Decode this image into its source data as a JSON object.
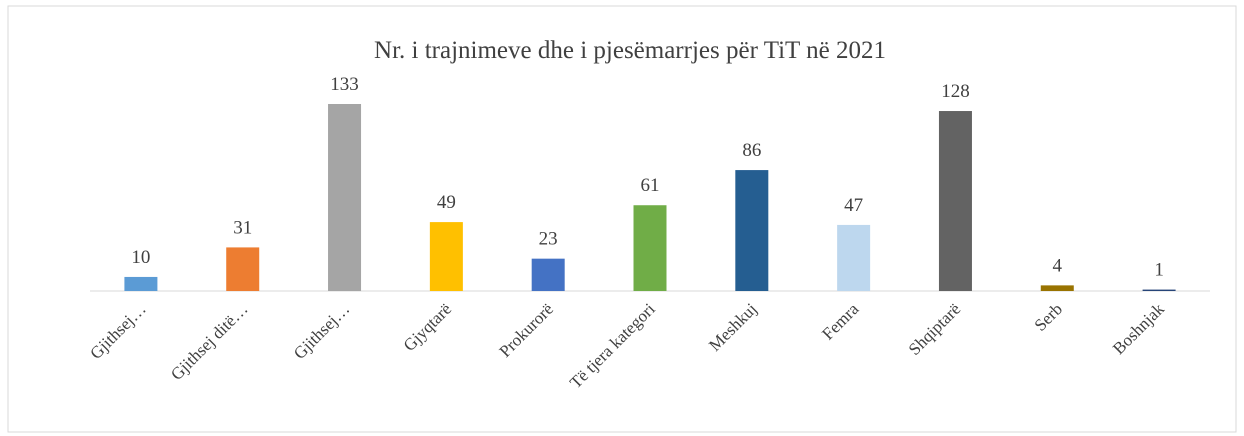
{
  "chart_data": {
    "type": "bar",
    "title": "Nr. i trajnimeve dhe i pjesëmarrjes për TiT në 2021",
    "categories": [
      "Gjithsej…",
      "Gjithsej ditë…",
      "Gjithsej…",
      "Gjyqtarë",
      "Prokurorë",
      "Të tjera kategori",
      "Meshkuj",
      "Femra",
      "Shqiptarë",
      "Serb",
      "Boshnjak"
    ],
    "values": [
      10,
      31,
      133,
      49,
      23,
      61,
      86,
      47,
      128,
      4,
      1
    ],
    "colors": [
      "#5b9bd5",
      "#ed7d31",
      "#a5a5a5",
      "#ffc000",
      "#4472c4",
      "#70ad47",
      "#255e91",
      "#bdd7ee",
      "#636363",
      "#997300",
      "#264478"
    ]
  }
}
